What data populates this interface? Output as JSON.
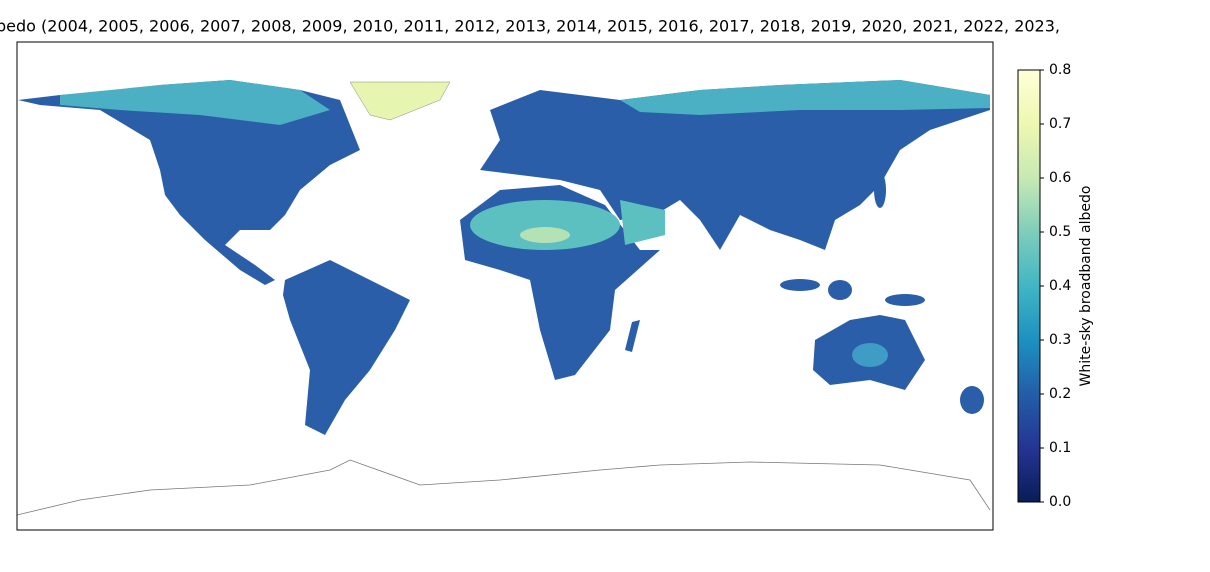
{
  "title": "bedo (2004, 2005, 2006, 2007, 2008, 2009, 2010, 2011, 2012, 2013, 2014, 2015, 2016, 2017, 2018, 2019, 2020, 2021, 2022, 2023,",
  "colorbar": {
    "label": "White-sky broadband albedo",
    "colormap": "YlGnBu_r",
    "lim": [
      0,
      0.8
    ],
    "ticks": [
      {
        "value": 0,
        "label": "0.0"
      },
      0.1,
      0.2,
      0.3,
      0.4,
      0.5,
      0.6,
      0.7,
      0.8
    ]
  }
}
